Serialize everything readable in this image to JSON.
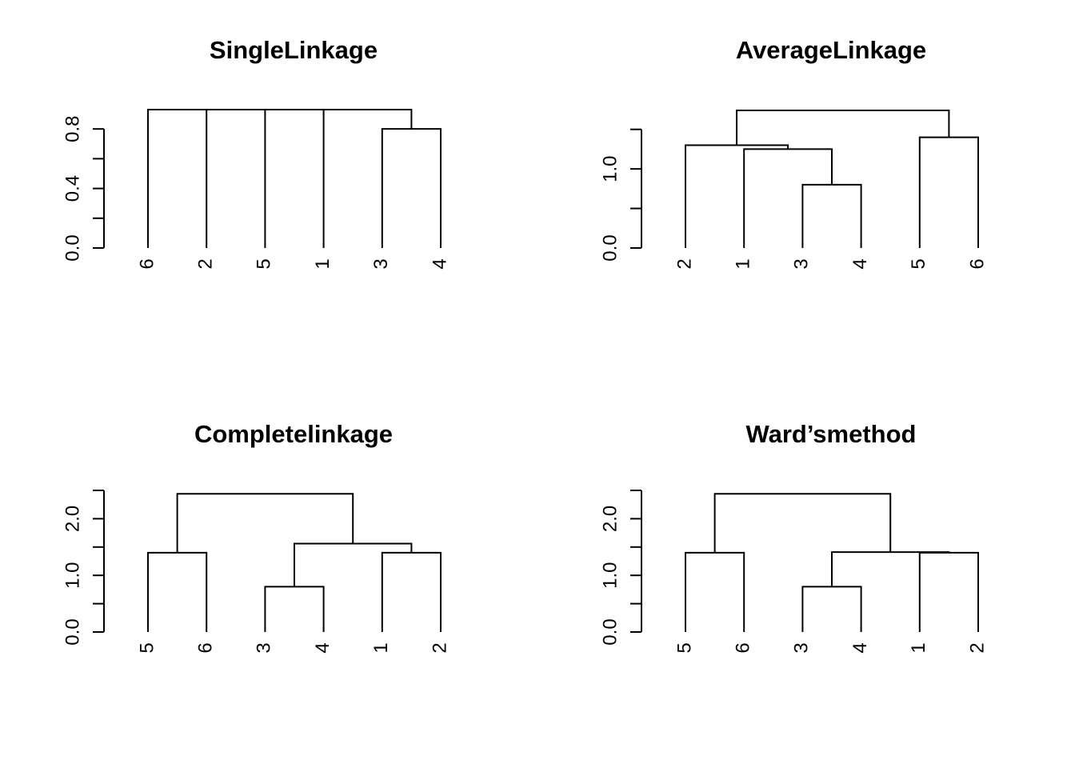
{
  "chart_data": [
    {
      "type": "dendrogram",
      "title": "SingleLinkage",
      "leaf_order": [
        "6",
        "2",
        "5",
        "1",
        "3",
        "4"
      ],
      "ylim": [
        0,
        0.93
      ],
      "y_ticks": [
        0,
        0.2,
        0.4,
        0.6,
        0.8
      ],
      "y_tick_labels": [
        "0.0",
        "",
        "0.4",
        "",
        "0.8"
      ],
      "merges": [
        {
          "left": "3",
          "right": "4",
          "height": 0.8
        },
        {
          "left": "1",
          "right": "(3,4)",
          "height": 0.93
        },
        {
          "left": "5",
          "right": "(1,3,4)",
          "height": 0.93
        },
        {
          "left": "2",
          "right": "(5,1,3,4)",
          "height": 0.93
        },
        {
          "left": "6",
          "right": "(2,5,1,3,4)",
          "height": 0.93
        }
      ]
    },
    {
      "type": "dendrogram",
      "title": "AverageLinkage",
      "leaf_order": [
        "2",
        "1",
        "3",
        "4",
        "5",
        "6"
      ],
      "ylim": [
        0,
        1.75
      ],
      "y_ticks": [
        0,
        0.5,
        1.0,
        1.5
      ],
      "y_tick_labels": [
        "0.0",
        "",
        "1.0",
        ""
      ],
      "merges": [
        {
          "left": "3",
          "right": "4",
          "height": 0.8
        },
        {
          "left": "1",
          "right": "(3,4)",
          "height": 1.25
        },
        {
          "left": "2",
          "right": "(1,3,4)",
          "height": 1.3
        },
        {
          "left": "5",
          "right": "6",
          "height": 1.4
        },
        {
          "left": "(2,1,3,4)",
          "right": "(5,6)",
          "height": 1.74
        }
      ]
    },
    {
      "type": "dendrogram",
      "title": "Completelinkage",
      "leaf_order": [
        "5",
        "6",
        "3",
        "4",
        "1",
        "2"
      ],
      "ylim": [
        0,
        2.5
      ],
      "y_ticks": [
        0,
        0.5,
        1.0,
        1.5,
        2.0,
        2.5
      ],
      "y_tick_labels": [
        "0.0",
        "",
        "1.0",
        "",
        "2.0",
        ""
      ],
      "merges": [
        {
          "left": "3",
          "right": "4",
          "height": 0.8
        },
        {
          "left": "5",
          "right": "6",
          "height": 1.4
        },
        {
          "left": "1",
          "right": "2",
          "height": 1.4
        },
        {
          "left": "(3,4)",
          "right": "(1,2)",
          "height": 1.56
        },
        {
          "left": "(5,6)",
          "right": "(3,4,1,2)",
          "height": 2.44
        }
      ]
    },
    {
      "type": "dendrogram",
      "title": "Ward’smethod",
      "leaf_order": [
        "5",
        "6",
        "3",
        "4",
        "1",
        "2"
      ],
      "ylim": [
        0,
        2.5
      ],
      "y_ticks": [
        0,
        0.5,
        1.0,
        1.5,
        2.0,
        2.5
      ],
      "y_tick_labels": [
        "0.0",
        "",
        "1.0",
        "",
        "2.0",
        ""
      ],
      "merges": [
        {
          "left": "3",
          "right": "4",
          "height": 0.8
        },
        {
          "left": "5",
          "right": "6",
          "height": 1.4
        },
        {
          "left": "1",
          "right": "2",
          "height": 1.4
        },
        {
          "left": "(3,4)",
          "right": "(1,2)",
          "height": 1.41
        },
        {
          "left": "(5,6)",
          "right": "(3,4,1,2)",
          "height": 2.44
        }
      ]
    }
  ]
}
